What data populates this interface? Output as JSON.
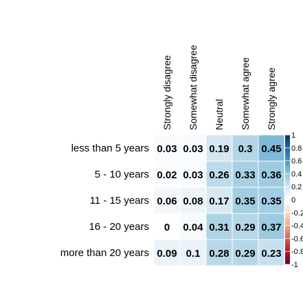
{
  "chart_data": {
    "type": "heatmap",
    "columns": [
      "Strongly disagree",
      "Somewhat disagree",
      "Neutral",
      "Somewhat agree",
      "Strongly agree"
    ],
    "rows": [
      "less than 5 years",
      "5 - 10 years",
      "11 - 15 years",
      "16 - 20 years",
      "more than 20 years"
    ],
    "values": [
      [
        0.03,
        0.03,
        0.19,
        0.3,
        0.45
      ],
      [
        0.02,
        0.03,
        0.26,
        0.33,
        0.36
      ],
      [
        0.06,
        0.08,
        0.17,
        0.35,
        0.35
      ],
      [
        0,
        0.04,
        0.31,
        0.29,
        0.37
      ],
      [
        0.09,
        0.1,
        0.28,
        0.29,
        0.23
      ]
    ],
    "value_labels": [
      [
        "0.03",
        "0.03",
        "0.19",
        "0.3",
        "0.45"
      ],
      [
        "0.02",
        "0.03",
        "0.26",
        "0.33",
        "0.36"
      ],
      [
        "0.06",
        "0.08",
        "0.17",
        "0.35",
        "0.35"
      ],
      [
        "0",
        "0.04",
        "0.31",
        "0.29",
        "0.37"
      ],
      [
        "0.09",
        "0.1",
        "0.28",
        "0.29",
        "0.23"
      ]
    ],
    "colorbar": {
      "range": [
        -1,
        1
      ],
      "ticks": [
        "1",
        "0.8",
        "0.6",
        "0.4",
        "0.2",
        "0",
        "-0.2",
        "-0.4",
        "-0.6",
        "-0.8",
        "-1"
      ],
      "colors": [
        "#67001F",
        "#B2182B",
        "#D6604D",
        "#F4A582",
        "#FDDBC7",
        "#FFFFFF",
        "#D1E5F0",
        "#92C5DE",
        "#4393C3",
        "#2166AC",
        "#053061"
      ]
    }
  }
}
